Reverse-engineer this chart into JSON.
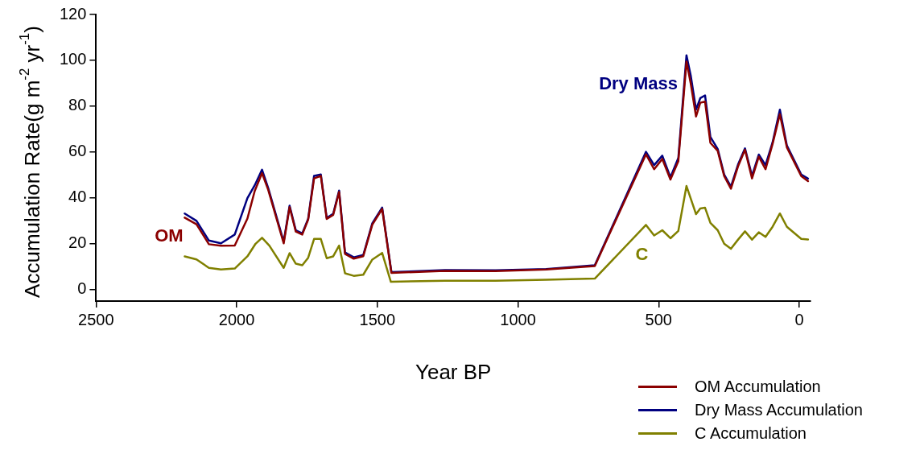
{
  "chart_data": {
    "type": "line",
    "xlabel": "Year BP",
    "ylabel": "Accumulation Rate(g m$^{-2}$ yr$^{-1}$)",
    "xlim": [
      2500,
      -40
    ],
    "xticks": [
      2500,
      2000,
      1500,
      1000,
      500,
      0
    ],
    "ylim": [
      -5,
      120
    ],
    "yticks": [
      0,
      20,
      40,
      60,
      80,
      100,
      120
    ],
    "grid": false,
    "legend": "bottom right",
    "marker": "none",
    "line_style": "solid",
    "annotations": [
      "OM",
      "Dry Mass",
      "C"
    ],
    "series": [
      {
        "name": "OM Accumulation",
        "color": "#8b0000",
        "x": [
          2185,
          2143,
          2099,
          2056,
          2007,
          1962,
          1936,
          1910,
          1888,
          1833,
          1812,
          1790,
          1767,
          1746,
          1725,
          1701,
          1680,
          1657,
          1636,
          1615,
          1584,
          1550,
          1518,
          1483,
          1450,
          1260,
          1080,
          900,
          727,
          545,
          516,
          487,
          458,
          430,
          401,
          386,
          367,
          352,
          335,
          316,
          290,
          267,
          243,
          217,
          193,
          168,
          144,
          120,
          95,
          69,
          44,
          -7,
          -31
        ],
        "values": [
          31.4,
          28.5,
          19.8,
          19.1,
          19.2,
          31,
          43,
          50.8,
          43.5,
          20.2,
          36,
          25.3,
          24,
          30.5,
          48.5,
          49.6,
          30.8,
          32.6,
          42.6,
          15.6,
          13.5,
          14.6,
          28.3,
          35.2,
          7.3,
          8.2,
          8.1,
          8.8,
          10.3,
          59,
          52.5,
          57,
          48,
          56,
          99.5,
          90,
          75.5,
          81.5,
          82,
          64,
          60.5,
          49.5,
          44,
          54,
          61,
          48.5,
          58,
          52.5,
          63.5,
          76.5,
          62,
          49.5,
          47.3
        ]
      },
      {
        "name": "Dry Mass Accumulation",
        "color": "#000080",
        "x": [
          2185,
          2143,
          2099,
          2056,
          2007,
          1962,
          1936,
          1910,
          1888,
          1833,
          1812,
          1790,
          1767,
          1746,
          1725,
          1701,
          1680,
          1657,
          1636,
          1615,
          1584,
          1550,
          1518,
          1483,
          1450,
          1260,
          1080,
          900,
          727,
          545,
          516,
          487,
          458,
          430,
          401,
          386,
          367,
          352,
          335,
          316,
          290,
          267,
          243,
          217,
          193,
          168,
          144,
          120,
          95,
          69,
          44,
          -7,
          -31
        ],
        "values": [
          33.2,
          30,
          21.4,
          20.2,
          24,
          39.9,
          45.5,
          52.3,
          44.3,
          20.9,
          36.6,
          25.9,
          24.5,
          30.9,
          49.6,
          50.2,
          31.2,
          33.1,
          43.2,
          16.2,
          14.1,
          15.1,
          28.9,
          35.8,
          7.6,
          8.5,
          8.4,
          9,
          10.6,
          60.1,
          54.3,
          58.4,
          49,
          57.4,
          102.2,
          93.4,
          78.5,
          83.5,
          84.7,
          66.6,
          61.3,
          50.2,
          44.9,
          54.8,
          61.6,
          49.6,
          58.9,
          54.3,
          64.2,
          78.5,
          62.8,
          50.2,
          48.4
        ]
      },
      {
        "name": "C Accumulation",
        "color": "#808000",
        "x": [
          2185,
          2143,
          2099,
          2056,
          2007,
          1962,
          1933,
          1910,
          1884,
          1833,
          1812,
          1790,
          1767,
          1746,
          1725,
          1701,
          1680,
          1657,
          1636,
          1615,
          1584,
          1550,
          1518,
          1483,
          1452,
          1260,
          1080,
          900,
          727,
          545,
          516,
          487,
          458,
          430,
          401,
          367,
          352,
          335,
          316,
          290,
          267,
          243,
          217,
          193,
          168,
          144,
          120,
          95,
          69,
          44,
          -7,
          -31
        ],
        "values": [
          14.5,
          13.2,
          9.5,
          8.8,
          9.2,
          14.5,
          20,
          22.6,
          19.2,
          9.5,
          15.9,
          11.3,
          10.6,
          13.9,
          22.1,
          22.1,
          13.7,
          14.5,
          19.2,
          7.1,
          6,
          6.5,
          13.1,
          16,
          3.4,
          3.9,
          3.9,
          4.3,
          4.8,
          28.2,
          23.6,
          25.9,
          22.4,
          25.6,
          45.2,
          32.9,
          35.4,
          35.7,
          29.1,
          25.9,
          20,
          17.8,
          21.9,
          25.4,
          21.8,
          25,
          23,
          27.4,
          33.2,
          27.4,
          22.1,
          21.9
        ]
      }
    ]
  }
}
